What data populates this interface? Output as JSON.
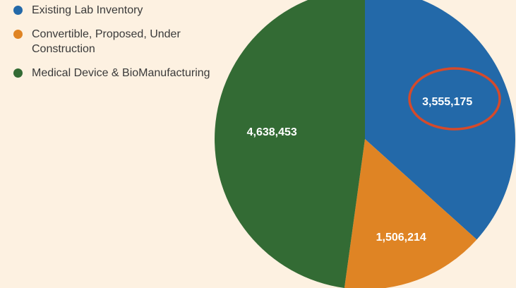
{
  "chart_data": {
    "type": "pie",
    "title": "",
    "legend": "left",
    "slices": [
      {
        "label": "Existing Lab Inventory",
        "value": 3555175,
        "value_label": "3,555,175",
        "color": "#2369a9"
      },
      {
        "label": "Convertible, Proposed, Under Construction",
        "value": 1506214,
        "value_label": "1,506,214",
        "color": "#df8424"
      },
      {
        "label": "Medical Device & BioManufacturing",
        "value": 4638453,
        "value_label": "4,638,453",
        "color": "#336b34"
      }
    ]
  },
  "annotation": {
    "type": "circle",
    "target": "3,555,175",
    "color": "#d54a2b"
  }
}
